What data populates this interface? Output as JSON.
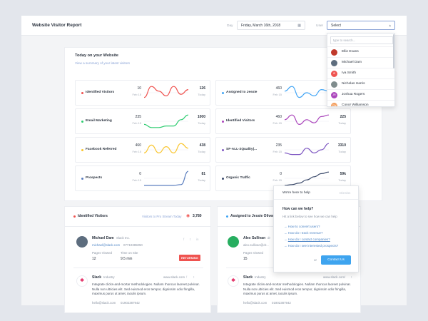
{
  "header": {
    "title": "Website Visitor Report",
    "day_label": "Day",
    "day_value": "Friday, March 16th, 2018",
    "user_label": "User",
    "user_value": "Select"
  },
  "today": {
    "title": "Today on your Website",
    "subtitle": "View a summary of your latest visitors"
  },
  "metrics": [
    {
      "label": "Identified Visitors",
      "from": "10",
      "from_date": "Feb 15",
      "to": "126",
      "to_date": "Today",
      "color": "#ef5350",
      "trend": [
        0.2,
        0.9,
        0.6,
        0.3,
        0.9,
        0.4,
        0.7
      ]
    },
    {
      "label": "Assigned to Jessie",
      "from": "460",
      "from_date": "Feb 15",
      "to": "126",
      "to_date": "Today",
      "color": "#42a5f5",
      "trend": [
        0.6,
        0.9,
        0.2,
        0.5,
        0.3,
        0.7,
        0.6
      ]
    },
    {
      "label": "Email Marketing",
      "from": "235",
      "from_date": "Feb 15",
      "to": "1000",
      "to_date": "Today",
      "color": "#2ecc71",
      "trend": [
        0.3,
        0.1,
        0.1,
        0.2,
        0.2,
        0.6,
        0.9
      ]
    },
    {
      "label": "Identified Visitors",
      "from": "460",
      "from_date": "Feb 15",
      "to": "225",
      "to_date": "Today",
      "color": "#ab47bc",
      "trend": [
        0.6,
        0.9,
        0.3,
        0.6,
        0.4,
        0.8,
        0.9
      ]
    },
    {
      "label": "Facebook Referred",
      "from": "460",
      "from_date": "Feb 15",
      "to": "438",
      "to_date": "Today",
      "color": "#f9c52d",
      "trend": [
        0.3,
        0.8,
        0.3,
        0.7,
        0.3,
        0.9,
        0.6
      ]
    },
    {
      "label": "SF-ALL-2Quality(...",
      "from": "235",
      "from_date": "Feb 15",
      "to": "3310",
      "to_date": "Today",
      "color": "#7e57c2",
      "trend": [
        0.3,
        0.2,
        0.2,
        0.6,
        0.3,
        0.5,
        0.9
      ]
    },
    {
      "label": "Prospects",
      "from": "0",
      "from_date": "Feb 15",
      "to": "81",
      "to_date": "Today",
      "color": "#5c7fbf",
      "trend": [
        0.05,
        0.05,
        0.05,
        0.05,
        0.05,
        0.1,
        0.95
      ]
    },
    {
      "label": "Organic Traffic",
      "from": "0",
      "from_date": "Feb 15",
      "to": "59k",
      "to_date": "Today",
      "color": "#3b4a6b",
      "trend": [
        0.05,
        0.1,
        0.2,
        0.4,
        0.6,
        0.8,
        0.9
      ]
    }
  ],
  "user_dropdown": {
    "search_placeholder": "type to search...",
    "users": [
      {
        "name": "Ellie Evans",
        "color": "#c0392b"
      },
      {
        "name": "Michael Dam",
        "color": "#5d6d7e"
      },
      {
        "name": "Iva Smith",
        "initials": "IS",
        "color": "#ef5350"
      },
      {
        "name": "Nicholas Harris",
        "color": "#7f8c8d"
      },
      {
        "name": "Joshua Rogers",
        "initials": "JR",
        "color": "#ab47bc"
      },
      {
        "name": "Conor Williamson",
        "initials": "CW",
        "color": "#f39c5a"
      }
    ]
  },
  "identified_card": {
    "title": "Identified Visitors",
    "right_link": "Visitors to Pro Stream Today",
    "count": "3,780",
    "person": {
      "name": "Michael Dam",
      "company": "Slack Inc.",
      "email": "michael@slack.com",
      "phone": "07710385050",
      "pages_label": "Pages Viewed",
      "pages_value": "12",
      "time_label": "Time on Site",
      "time_value": "9.5 min",
      "badge": "RETURNING"
    },
    "company": {
      "name": "Slack",
      "industry": "Industry",
      "url": "www.slack.com",
      "description": "Integrate clicks-and-mortar methodologies. Nullam rhoncus laoreet pulvinar. Nulla non ultricies elit. Sed euismod eros tempor, dignissim odio fringilla, maximus purus ut amet, iaculis ipsum.",
      "email": "hello@slack.com",
      "phone": "01902387942"
    }
  },
  "assigned_card": {
    "title": "Assigned to Jessie Oliver",
    "person": {
      "name": "Alex Sullivan",
      "company": "dr",
      "email": "alex.sullivan@dr...",
      "pages_label": "Pages Viewed",
      "pages_value": "15"
    },
    "company": {
      "name": "Slack",
      "industry": "Industry",
      "url": "www.slack.com",
      "description": "Integrate clicks-and-mortar methodologies. Nullam rhoncus laoreet pulvinar. Nulla non ultricies elit. Sed euismod eros tempor, dignissim odio fringilla, maximus purus ut amet, iaculis ipsum.",
      "email": "hello@slack.com",
      "phone": "01902387942"
    }
  },
  "help_widget": {
    "header": "We're here to help",
    "dismiss": "Dismiss",
    "title": "How can we help?",
    "subtitle": "Hit a link below to see how we can help",
    "links": [
      "How to convert users?",
      "How do I track revenue?",
      "How do I contact companies?",
      "How do I see interested prospects?"
    ],
    "or": "or",
    "cta": "Contact Us"
  }
}
